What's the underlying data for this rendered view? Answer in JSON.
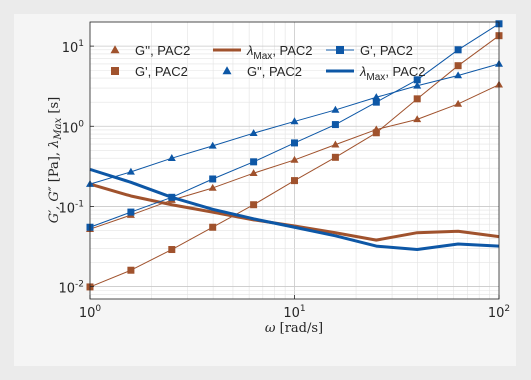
{
  "chart_data": {
    "type": "line",
    "xscale": "log",
    "yscale": "log",
    "xlim": [
      1,
      100
    ],
    "ylim": [
      0.007,
      20
    ],
    "grid": true,
    "legend_placement": "top",
    "xlabel": {
      "base": "ω",
      "unit": "[rad/s]"
    },
    "ylabel": {
      "g1": "G′, ",
      "g2": "G″",
      "unit": " [Pa], ",
      "lambda": "λ",
      "sub": "Max",
      "unit2": " [s]"
    },
    "x_ticks": [
      {
        "value": 1,
        "base": "10",
        "exp": "0"
      },
      {
        "value": 10,
        "base": "10",
        "exp": "1"
      },
      {
        "value": 100,
        "base": "10",
        "exp": "2"
      }
    ],
    "y_ticks": [
      {
        "value": 0.01,
        "base": "10",
        "exp": "-2"
      },
      {
        "value": 0.1,
        "base": "10",
        "exp": "-1"
      },
      {
        "value": 1,
        "base": "10",
        "exp": "0"
      },
      {
        "value": 10,
        "base": "10",
        "exp": "1"
      }
    ],
    "series": [
      {
        "label": "G'', PAC2",
        "marker": "triangle",
        "color": "#a0522d",
        "line_width": 1,
        "x": [
          1,
          1.585,
          2.512,
          3.981,
          6.31,
          10,
          15.85,
          25.12,
          39.81,
          63.1,
          100
        ],
        "y": [
          0.052,
          0.078,
          0.12,
          0.17,
          0.26,
          0.38,
          0.59,
          0.91,
          1.22,
          1.9,
          3.3
        ]
      },
      {
        "label": "G', PAC2",
        "marker": "square",
        "color": "#a0522d",
        "line_width": 1,
        "x": [
          1,
          1.585,
          2.512,
          3.981,
          6.31,
          10,
          15.85,
          25.12,
          39.81,
          63.1,
          100
        ],
        "y": [
          0.0099,
          0.016,
          0.029,
          0.055,
          0.105,
          0.21,
          0.41,
          0.83,
          2.2,
          5.7,
          13.5
        ]
      },
      {
        "label_base": "λ",
        "label_sub": "Max",
        "label_rest": ", PAC2",
        "marker": "none",
        "color": "#a0522d",
        "line_width": 3,
        "x": [
          1,
          1.585,
          2.512,
          3.981,
          6.31,
          10,
          15.85,
          25.12,
          39.81,
          63.1,
          100
        ],
        "y": [
          0.19,
          0.135,
          0.105,
          0.085,
          0.068,
          0.057,
          0.047,
          0.038,
          0.047,
          0.049,
          0.042
        ]
      },
      {
        "label": "G\", PAC2",
        "marker": "triangle",
        "color": "#0d57a6",
        "line_width": 1,
        "x": [
          1,
          1.585,
          2.512,
          3.981,
          6.31,
          10,
          15.85,
          25.12,
          39.81,
          63.1,
          100
        ],
        "y": [
          0.19,
          0.27,
          0.4,
          0.57,
          0.82,
          1.15,
          1.6,
          2.3,
          3.2,
          4.3,
          6.0
        ]
      },
      {
        "label": "G', PAC2",
        "marker": "square",
        "color": "#0d57a6",
        "line_width": 1,
        "x": [
          1,
          1.585,
          2.512,
          3.981,
          6.31,
          10,
          15.85,
          25.12,
          39.81,
          63.1,
          100
        ],
        "y": [
          0.055,
          0.085,
          0.13,
          0.22,
          0.36,
          0.62,
          1.05,
          2.0,
          3.8,
          9.0,
          19.0
        ]
      },
      {
        "label_base": "λ",
        "label_sub": "Max",
        "label_rest": ", PAC2",
        "marker": "none",
        "color": "#0d57a6",
        "line_width": 3,
        "x": [
          1,
          1.585,
          2.512,
          3.981,
          6.31,
          10,
          15.85,
          25.12,
          39.81,
          63.1,
          100
        ],
        "y": [
          0.29,
          0.2,
          0.13,
          0.092,
          0.07,
          0.055,
          0.043,
          0.032,
          0.029,
          0.034,
          0.032
        ]
      }
    ]
  }
}
